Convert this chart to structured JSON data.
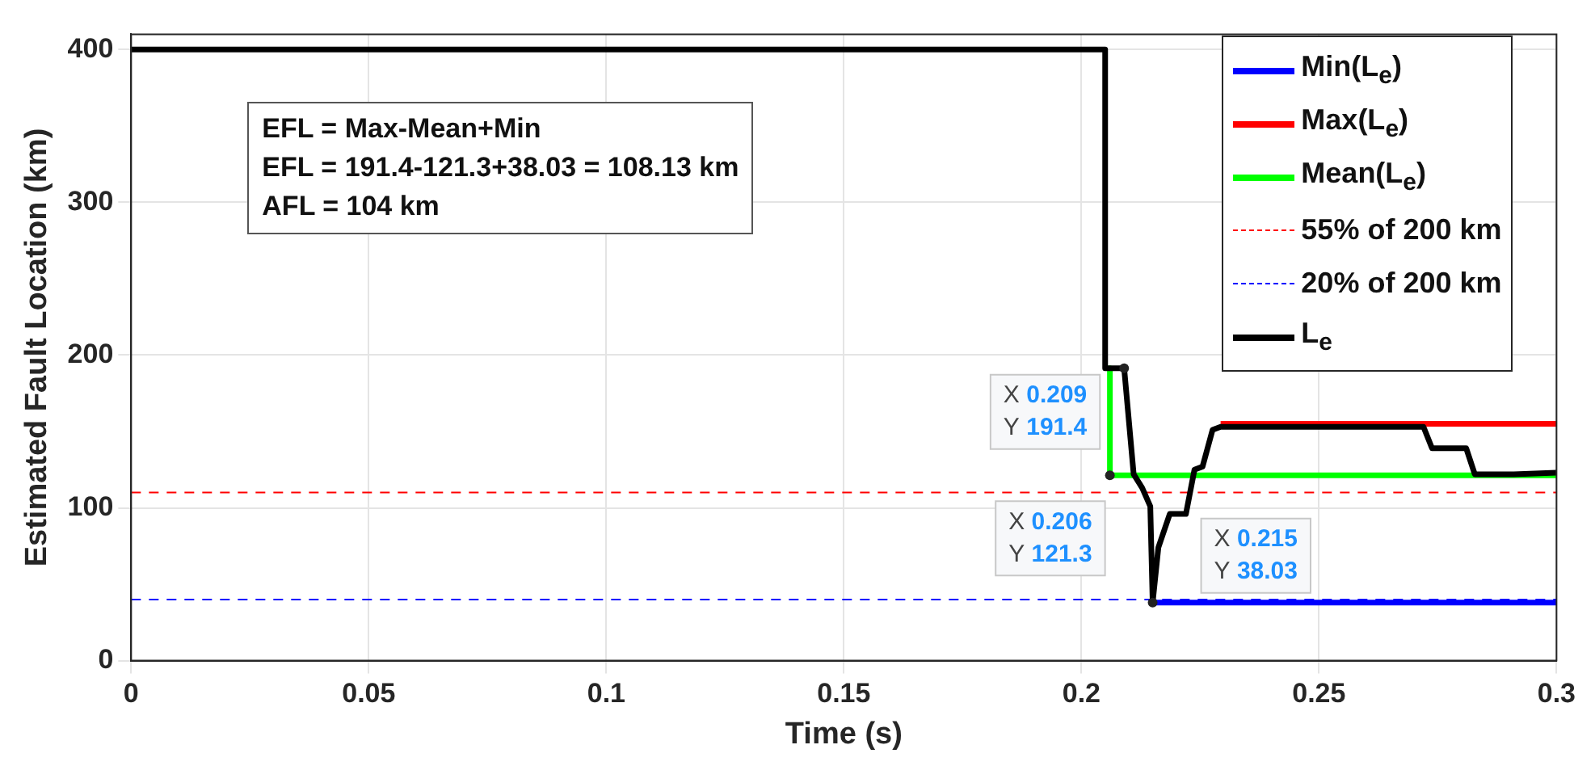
{
  "chart_data": {
    "type": "line",
    "xlabel": "Time (s)",
    "ylabel": "Estimated Fault Location (km)",
    "xlim": [
      0,
      0.3
    ],
    "xticks": [
      0,
      0.05,
      0.1,
      0.15,
      0.2,
      0.25,
      0.3
    ],
    "ylim": [
      0,
      410
    ],
    "yticks": [
      0,
      100,
      200,
      300,
      400
    ],
    "grid": true,
    "legend": "top right",
    "series": [
      {
        "name": "Min(L$_{e}$)",
        "color": "#0000ff",
        "line_style": "solid",
        "x": [
          0.215,
          0.3
        ],
        "values": [
          38.03,
          38.03
        ]
      },
      {
        "name": "Max(L$_{e}$)",
        "color": "#ff0000",
        "line_style": "solid",
        "x": [
          0.2293,
          0.3
        ],
        "values": [
          155,
          155
        ]
      },
      {
        "name": "Mean(L$_{e}$)",
        "color": "#00ff00",
        "line_style": "solid",
        "x": [
          0.206,
          0.206,
          0.3
        ],
        "values": [
          191.4,
          121.3,
          121.3
        ]
      },
      {
        "name": "55% of 200 km",
        "color": "#ff0000",
        "line_style": "dashed",
        "x": [
          0,
          0.3
        ],
        "values": [
          110,
          110
        ]
      },
      {
        "name": "20% of 200 km",
        "color": "#0000ff",
        "line_style": "dashed",
        "x": [
          0,
          0.3
        ],
        "values": [
          40,
          40
        ]
      },
      {
        "name": "L$_{e}$",
        "color": "#000000",
        "line_style": "solid",
        "x": [
          0,
          0.205,
          0.205,
          0.209,
          0.211,
          0.2128,
          0.2145,
          0.215,
          0.2162,
          0.2186,
          0.222,
          0.2238,
          0.2255,
          0.2276,
          0.2293,
          0.272,
          0.2738,
          0.281,
          0.2828,
          0.291,
          0.3
        ],
        "values": [
          400,
          400,
          191.4,
          191.4,
          122,
          113,
          101,
          38.03,
          74,
          96,
          96,
          125,
          127,
          151,
          153,
          153,
          139,
          139,
          122,
          122,
          123
        ]
      }
    ],
    "annotations": [
      "EFL = Max-Mean+Min",
      "EFL = 191.4-121.3+38.03 = 108.13 km",
      "AFL = 104 km",
      {
        "text": "X 0.209\nY 191.4",
        "x": 0.209,
        "y": 191.4
      },
      {
        "text": "X 0.206\nY 121.3",
        "x": 0.206,
        "y": 121.3
      },
      {
        "text": "X 0.215\nY 38.03",
        "x": 0.215,
        "y": 38.03
      }
    ]
  }
}
